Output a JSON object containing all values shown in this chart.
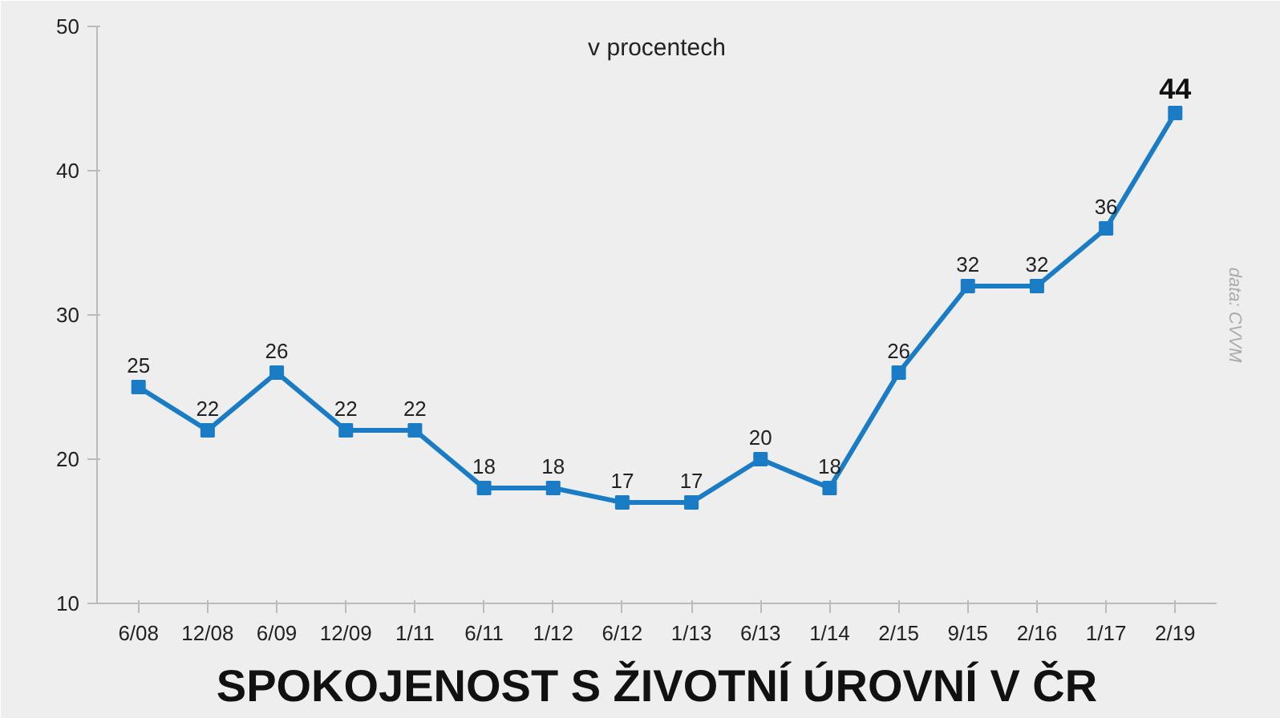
{
  "chart_data": {
    "type": "line",
    "title": "SPOKOJENOST S ŽIVOTNÍ ÚROVNÍ V ČR",
    "subtitle": "v procentech",
    "annotations": [
      "data: CVVM"
    ],
    "categories": [
      "6/08",
      "12/08",
      "6/09",
      "12/09",
      "1/11",
      "6/11",
      "1/12",
      "6/12",
      "1/13",
      "6/13",
      "1/14",
      "2/15",
      "9/15",
      "2/16",
      "1/17",
      "2/19"
    ],
    "series": [
      {
        "color": "#1a7cc4",
        "values": [
          25,
          22,
          26,
          22,
          22,
          18,
          18,
          17,
          17,
          20,
          18,
          26,
          32,
          32,
          36,
          44
        ]
      }
    ],
    "ylim": [
      10,
      50
    ],
    "yticks": [
      10,
      20,
      30,
      40,
      50
    ],
    "grid": false,
    "marker": "square",
    "line_style": "solid",
    "data_labels": true
  }
}
